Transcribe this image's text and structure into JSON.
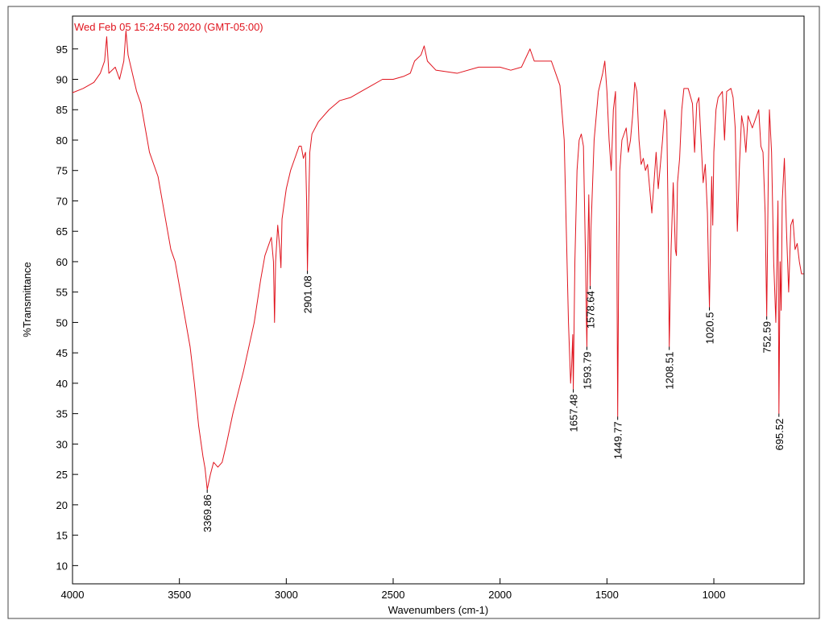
{
  "chart_data": {
    "type": "line",
    "title": "Wed Feb 05 15:24:50 2020 (GMT-05:00)",
    "xlabel": "Wavenumbers (cm-1)",
    "ylabel": "%Transmittance",
    "xlim": [
      4000,
      578
    ],
    "ylim": [
      7,
      100.4
    ],
    "xticks": [
      4000,
      3500,
      3000,
      2500,
      2000,
      1500,
      1000
    ],
    "yticks": [
      10,
      15,
      20,
      25,
      30,
      35,
      40,
      45,
      50,
      55,
      60,
      65,
      70,
      75,
      80,
      85,
      90,
      95
    ],
    "x_reversed": true,
    "x": [
      4000,
      3950,
      3900,
      3870,
      3850,
      3840,
      3830,
      3800,
      3780,
      3760,
      3750,
      3740,
      3720,
      3700,
      3680,
      3660,
      3640,
      3600,
      3580,
      3560,
      3540,
      3520,
      3500,
      3480,
      3450,
      3430,
      3410,
      3390,
      3380,
      3369.86,
      3355,
      3340,
      3320,
      3300,
      3280,
      3250,
      3200,
      3150,
      3120,
      3100,
      3080,
      3070,
      3060,
      3055,
      3050,
      3040,
      3030,
      3025,
      3020,
      3000,
      2980,
      2960,
      2940,
      2930,
      2920,
      2910,
      2905,
      2901.08,
      2895,
      2890,
      2880,
      2850,
      2800,
      2750,
      2700,
      2650,
      2600,
      2550,
      2500,
      2450,
      2420,
      2400,
      2370,
      2355,
      2340,
      2300,
      2200,
      2100,
      2000,
      1950,
      1900,
      1860,
      1840,
      1800,
      1760,
      1740,
      1720,
      1700,
      1690,
      1680,
      1670,
      1665,
      1660,
      1657.48,
      1650,
      1640,
      1630,
      1620,
      1610,
      1600,
      1596,
      1593.79,
      1590,
      1585,
      1580,
      1578.64,
      1575,
      1560,
      1540,
      1520,
      1510,
      1500,
      1490,
      1480,
      1470,
      1460,
      1455,
      1449.77,
      1445,
      1440,
      1430,
      1410,
      1400,
      1390,
      1380,
      1370,
      1360,
      1350,
      1340,
      1330,
      1320,
      1310,
      1300,
      1290,
      1280,
      1270,
      1260,
      1240,
      1230,
      1220,
      1215,
      1208.51,
      1200,
      1190,
      1180,
      1175,
      1170,
      1160,
      1150,
      1140,
      1120,
      1100,
      1090,
      1080,
      1070,
      1060,
      1050,
      1040,
      1030,
      1025,
      1020.5,
      1015,
      1010,
      1005,
      1000,
      990,
      980,
      960,
      950,
      940,
      920,
      910,
      900,
      890,
      880,
      870,
      860,
      850,
      840,
      820,
      800,
      790,
      780,
      770,
      760,
      752.59,
      745,
      740,
      730,
      720,
      710,
      700,
      695.52,
      690,
      685,
      680,
      670,
      660,
      650,
      640,
      630,
      620,
      610,
      600,
      590,
      580
    ],
    "series": [
      {
        "name": "spectrum",
        "color": "#e0141e",
        "values": [
          87.8,
          88.5,
          89.5,
          91,
          93,
          97,
          91,
          92,
          90,
          93,
          98,
          94,
          91,
          88,
          86,
          82,
          78,
          74,
          70,
          66,
          62,
          60,
          56,
          52,
          46,
          40,
          33,
          28,
          26,
          22.5,
          25,
          27,
          26.2,
          27,
          30,
          35,
          42,
          50,
          57,
          61,
          63,
          64,
          60,
          50,
          60,
          66,
          62,
          59,
          67,
          72,
          75,
          77,
          79,
          79,
          77,
          78,
          70,
          58.5,
          70,
          78,
          81,
          83,
          85,
          86.5,
          87,
          88,
          89,
          90,
          90,
          90.5,
          91,
          93,
          94,
          95.5,
          93,
          91.5,
          91,
          92,
          92,
          91.5,
          92,
          95,
          93,
          93,
          93,
          91,
          89,
          80,
          65,
          50,
          40,
          43,
          48,
          39,
          60,
          75,
          80,
          81,
          79,
          60,
          50,
          46,
          60,
          71,
          60,
          56,
          65,
          80,
          88,
          91,
          93,
          88,
          80,
          75,
          85,
          88,
          70,
          34.5,
          60,
          75,
          80,
          82,
          78,
          80,
          84,
          89.5,
          88,
          80,
          76,
          77,
          75,
          76,
          72,
          68,
          73,
          78,
          72,
          80,
          85,
          83,
          70,
          46,
          62,
          73,
          62,
          61,
          73,
          77,
          85,
          88.5,
          88.5,
          86,
          78,
          86,
          87,
          80,
          73,
          76,
          68,
          59,
          52.5,
          65,
          74,
          66,
          78,
          85,
          87,
          88,
          80,
          88,
          88.5,
          87,
          82,
          65,
          76,
          84,
          82,
          78,
          84,
          82,
          84,
          85,
          79,
          78,
          68,
          51,
          75,
          85,
          78,
          60,
          50,
          70,
          35,
          60,
          52,
          70,
          77,
          65,
          55,
          66,
          67,
          62,
          63,
          60,
          58,
          58
        ]
      }
    ],
    "peaks": [
      {
        "x": 3369.86,
        "y": 22.5
      },
      {
        "x": 2901.08,
        "y": 58.5
      },
      {
        "x": 1657.48,
        "y": 39
      },
      {
        "x": 1593.79,
        "y": 46
      },
      {
        "x": 1578.64,
        "y": 56
      },
      {
        "x": 1449.77,
        "y": 34.5
      },
      {
        "x": 1208.51,
        "y": 46
      },
      {
        "x": 1020.5,
        "y": 52.5
      },
      {
        "x": 752.59,
        "y": 51
      },
      {
        "x": 695.52,
        "y": 35
      }
    ]
  }
}
